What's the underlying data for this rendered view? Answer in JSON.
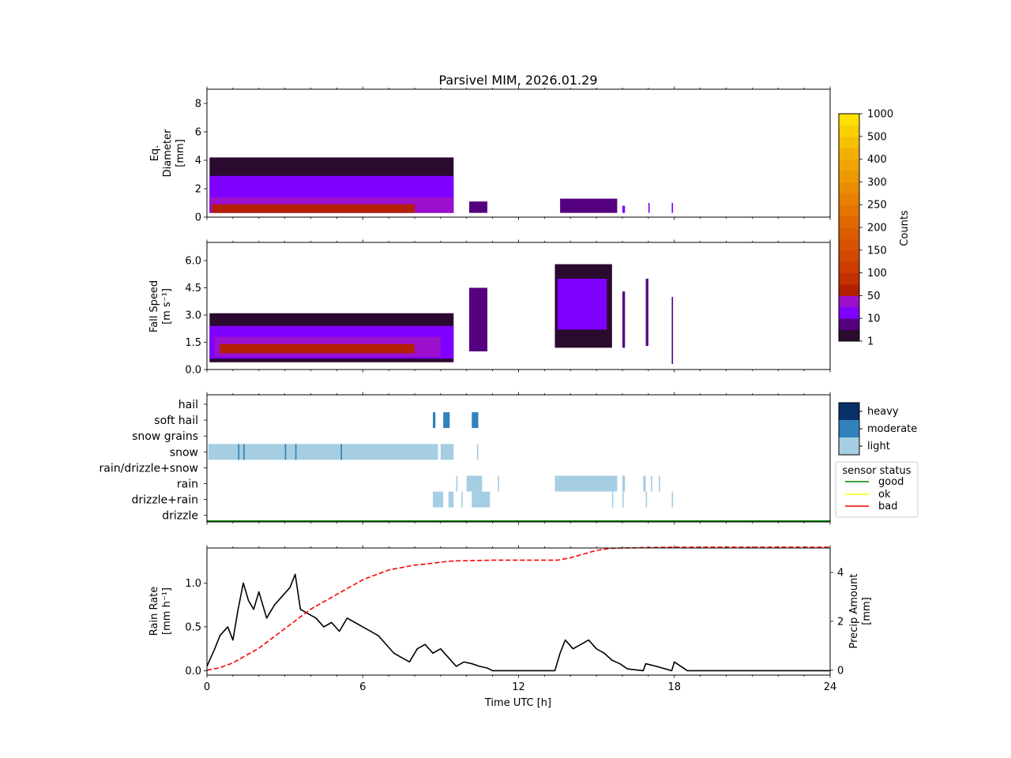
{
  "chart_data": [
    {
      "type": "heatmap",
      "title": "Parsivel MIM, 2026.01.29",
      "ylabel_lines": [
        "Eq.",
        "Diameter",
        "[mm]"
      ],
      "xlim": [
        0,
        24
      ],
      "ylim": [
        0,
        9
      ],
      "yticks": [
        "0",
        "2",
        "4",
        "6",
        "8"
      ],
      "ytick_values": [
        0,
        2,
        4,
        6,
        8
      ],
      "xtick_values": [
        0,
        6,
        12,
        18,
        24
      ],
      "blocks": [
        {
          "t0": 0.1,
          "t1": 9.5,
          "top": 4.2,
          "level": 0
        },
        {
          "t0": 0.1,
          "t1": 9.5,
          "top": 2.9,
          "level": 2
        },
        {
          "t0": 0.1,
          "t1": 9.5,
          "top": 1.4,
          "level": 3
        },
        {
          "t0": 0.2,
          "t1": 8.0,
          "top": 0.9,
          "level": 4
        },
        {
          "t0": 10.1,
          "t1": 10.8,
          "top": 1.1,
          "level": 1
        },
        {
          "t0": 13.6,
          "t1": 15.8,
          "top": 1.3,
          "level": 1
        },
        {
          "t0": 16.0,
          "t1": 16.1,
          "top": 0.8,
          "level": 2
        },
        {
          "t0": 17.0,
          "t1": 17.05,
          "top": 1.0,
          "level": 2
        },
        {
          "t0": 17.9,
          "t1": 17.95,
          "top": 1.0,
          "level": 2
        }
      ]
    },
    {
      "type": "heatmap",
      "ylabel_lines": [
        "Fall Speed",
        "[m s⁻¹]"
      ],
      "xlim": [
        0,
        24
      ],
      "ylim": [
        0,
        7
      ],
      "yticks": [
        "0.0",
        "1.5",
        "3.0",
        "4.5",
        "6.0"
      ],
      "ytick_values": [
        0,
        1.5,
        3.0,
        4.5,
        6.0
      ],
      "xtick_values": [
        0,
        6,
        12,
        18,
        24
      ],
      "blocks": [
        {
          "t0": 0.1,
          "t1": 9.5,
          "bottom": 0.4,
          "top": 3.1,
          "level": 0
        },
        {
          "t0": 0.1,
          "t1": 9.5,
          "bottom": 0.6,
          "top": 2.4,
          "level": 2
        },
        {
          "t0": 0.3,
          "t1": 9.0,
          "bottom": 0.7,
          "top": 1.8,
          "level": 3
        },
        {
          "t0": 0.5,
          "t1": 8.0,
          "bottom": 0.9,
          "top": 1.4,
          "level": 4
        },
        {
          "t0": 10.1,
          "t1": 10.8,
          "bottom": 1.0,
          "top": 4.5,
          "level": 1
        },
        {
          "t0": 13.4,
          "t1": 15.6,
          "bottom": 1.2,
          "top": 5.8,
          "level": 0
        },
        {
          "t0": 13.5,
          "t1": 15.4,
          "bottom": 2.2,
          "top": 5.0,
          "level": 2
        },
        {
          "t0": 16.0,
          "t1": 16.1,
          "bottom": 1.2,
          "top": 4.3,
          "level": 1
        },
        {
          "t0": 16.9,
          "t1": 17.0,
          "bottom": 1.3,
          "top": 5.0,
          "level": 1
        },
        {
          "t0": 17.9,
          "t1": 17.95,
          "bottom": 0.3,
          "top": 4.0,
          "level": 1
        }
      ]
    },
    {
      "type": "categorical_timeline",
      "categories": [
        "hail",
        "soft hail",
        "snow grains",
        "snow",
        "rain/drizzle+snow",
        "rain",
        "drizzle+rain",
        "drizzle"
      ],
      "xlim": [
        0,
        24
      ],
      "xtick_values": [
        0,
        6,
        12,
        18,
        24
      ],
      "segments": [
        {
          "category": "snow",
          "t0": 0.05,
          "t1": 8.9,
          "intensity": "light"
        },
        {
          "category": "snow",
          "t0": 9.0,
          "t1": 9.5,
          "intensity": "light"
        },
        {
          "category": "snow",
          "t0": 10.4,
          "t1": 10.45,
          "intensity": "light"
        },
        {
          "category": "snow",
          "t0": 1.2,
          "t1": 1.25,
          "intensity": "moderate"
        },
        {
          "category": "snow",
          "t0": 1.4,
          "t1": 1.45,
          "intensity": "moderate"
        },
        {
          "category": "snow",
          "t0": 3.0,
          "t1": 3.05,
          "intensity": "moderate"
        },
        {
          "category": "snow",
          "t0": 3.4,
          "t1": 3.45,
          "intensity": "moderate"
        },
        {
          "category": "snow",
          "t0": 5.15,
          "t1": 5.2,
          "intensity": "moderate"
        },
        {
          "category": "soft hail",
          "t0": 8.7,
          "t1": 8.8,
          "intensity": "moderate"
        },
        {
          "category": "soft hail",
          "t0": 9.1,
          "t1": 9.35,
          "intensity": "moderate"
        },
        {
          "category": "soft hail",
          "t0": 10.2,
          "t1": 10.45,
          "intensity": "moderate"
        },
        {
          "category": "rain",
          "t0": 9.6,
          "t1": 9.65,
          "intensity": "light"
        },
        {
          "category": "rain",
          "t0": 10.0,
          "t1": 10.6,
          "intensity": "light"
        },
        {
          "category": "rain",
          "t0": 11.2,
          "t1": 11.25,
          "intensity": "light"
        },
        {
          "category": "rain",
          "t0": 13.4,
          "t1": 15.8,
          "intensity": "light"
        },
        {
          "category": "rain",
          "t0": 16.0,
          "t1": 16.1,
          "intensity": "light"
        },
        {
          "category": "rain",
          "t0": 16.8,
          "t1": 16.9,
          "intensity": "light"
        },
        {
          "category": "rain",
          "t0": 17.1,
          "t1": 17.15,
          "intensity": "light"
        },
        {
          "category": "rain",
          "t0": 17.4,
          "t1": 17.45,
          "intensity": "light"
        },
        {
          "category": "drizzle+rain",
          "t0": 8.7,
          "t1": 9.1,
          "intensity": "light"
        },
        {
          "category": "drizzle+rain",
          "t0": 9.3,
          "t1": 9.5,
          "intensity": "light"
        },
        {
          "category": "drizzle+rain",
          "t0": 9.8,
          "t1": 9.85,
          "intensity": "light"
        },
        {
          "category": "drizzle+rain",
          "t0": 10.2,
          "t1": 10.9,
          "intensity": "light"
        },
        {
          "category": "drizzle+rain",
          "t0": 15.6,
          "t1": 15.65,
          "intensity": "light"
        },
        {
          "category": "drizzle+rain",
          "t0": 16.0,
          "t1": 16.05,
          "intensity": "light"
        },
        {
          "category": "drizzle+rain",
          "t0": 16.9,
          "t1": 16.95,
          "intensity": "light"
        },
        {
          "category": "drizzle+rain",
          "t0": 17.9,
          "t1": 17.95,
          "intensity": "light"
        }
      ],
      "sensor_status": {
        "value": "good",
        "t0": 0,
        "t1": 24
      }
    },
    {
      "type": "line",
      "xlabel": "Time UTC [h]",
      "ylabel_lines": [
        "Rain Rate",
        "[mm h⁻¹]"
      ],
      "y2label_lines": [
        "Precip Amount",
        "[mm]"
      ],
      "xlim": [
        0,
        24
      ],
      "ylim": [
        -0.05,
        1.4
      ],
      "y2lim": [
        -0.2,
        5.0
      ],
      "xticks": [
        "0",
        "6",
        "12",
        "18",
        "24"
      ],
      "xtick_values": [
        0,
        6,
        12,
        18,
        24
      ],
      "yticks": [
        "0.0",
        "0.5",
        "1.0"
      ],
      "ytick_values": [
        0,
        0.5,
        1.0
      ],
      "y2ticks": [
        "0",
        "2",
        "4"
      ],
      "y2tick_values": [
        0,
        2,
        4
      ],
      "series": [
        {
          "name": "rain rate",
          "axis": "left",
          "style": "solid black",
          "x": [
            0,
            0.3,
            0.5,
            0.8,
            1.0,
            1.2,
            1.4,
            1.6,
            1.8,
            2.0,
            2.3,
            2.6,
            2.9,
            3.2,
            3.4,
            3.6,
            3.9,
            4.2,
            4.5,
            4.8,
            5.1,
            5.4,
            5.7,
            6.0,
            6.3,
            6.6,
            6.9,
            7.2,
            7.5,
            7.8,
            8.1,
            8.4,
            8.7,
            9.0,
            9.3,
            9.6,
            9.9,
            10.2,
            10.5,
            10.8,
            11.0,
            11.5,
            12.0,
            13.0,
            13.4,
            13.6,
            13.8,
            14.1,
            14.4,
            14.7,
            15.0,
            15.3,
            15.6,
            15.9,
            16.2,
            16.8,
            16.9,
            17.3,
            17.9,
            18.0,
            18.5,
            24.0
          ],
          "y": [
            0.05,
            0.25,
            0.4,
            0.5,
            0.35,
            0.7,
            1.0,
            0.8,
            0.7,
            0.9,
            0.6,
            0.75,
            0.85,
            0.95,
            1.1,
            0.7,
            0.65,
            0.6,
            0.5,
            0.55,
            0.45,
            0.6,
            0.55,
            0.5,
            0.45,
            0.4,
            0.3,
            0.2,
            0.15,
            0.1,
            0.25,
            0.3,
            0.2,
            0.25,
            0.15,
            0.05,
            0.1,
            0.08,
            0.05,
            0.03,
            0.0,
            0.0,
            0.0,
            0.0,
            0.0,
            0.2,
            0.35,
            0.25,
            0.3,
            0.35,
            0.25,
            0.2,
            0.12,
            0.08,
            0.02,
            0.0,
            0.08,
            0.05,
            0.0,
            0.1,
            0.0,
            0.0
          ]
        },
        {
          "name": "precip amount",
          "axis": "right",
          "style": "dashed red",
          "x": [
            0,
            0.5,
            1.0,
            1.5,
            2.0,
            2.5,
            3.0,
            3.5,
            4.0,
            4.5,
            5.0,
            5.5,
            6.0,
            6.5,
            7.0,
            7.5,
            8.0,
            8.5,
            9.0,
            9.5,
            10.0,
            10.5,
            11.0,
            12.0,
            13.0,
            13.5,
            14.0,
            14.5,
            15.0,
            15.5,
            16.0,
            17.0,
            18.0,
            20.0,
            24.0
          ],
          "y": [
            0.0,
            0.1,
            0.3,
            0.6,
            0.9,
            1.3,
            1.7,
            2.1,
            2.5,
            2.8,
            3.1,
            3.4,
            3.7,
            3.9,
            4.1,
            4.2,
            4.3,
            4.35,
            4.42,
            4.47,
            4.48,
            4.49,
            4.5,
            4.5,
            4.5,
            4.5,
            4.6,
            4.75,
            4.9,
            4.98,
            5.0,
            5.02,
            5.03,
            5.03,
            5.03
          ]
        }
      ]
    }
  ],
  "colorbar": {
    "label": "Counts",
    "tick_labels": [
      "1",
      "10",
      "50",
      "100",
      "150",
      "200",
      "250",
      "300",
      "400",
      "500",
      "1000"
    ],
    "colors": [
      "#2a0a2e",
      "#55007f",
      "#7f00ff",
      "#9b10cc",
      "#b22000",
      "#c23000",
      "#cc3c00",
      "#d24800",
      "#d85200",
      "#dc5c00",
      "#e06800",
      "#e57400",
      "#e88000",
      "#ea8c00",
      "#ee9800",
      "#f0a400",
      "#f2b000",
      "#f5c000",
      "#f8d000",
      "#ffe000"
    ]
  },
  "type_legend": {
    "items": [
      "heavy",
      "moderate",
      "light"
    ],
    "colors": {
      "heavy": "#08306b",
      "moderate": "#3182bd",
      "light": "#a6cee3"
    }
  },
  "status_legend": {
    "title": "sensor status",
    "items": [
      {
        "label": "good",
        "color": "#008000"
      },
      {
        "label": "ok",
        "color": "#ffff00"
      },
      {
        "label": "bad",
        "color": "#ff0000"
      }
    ]
  },
  "level_colors": [
    "#2a0a2e",
    "#55007f",
    "#7f00ff",
    "#9b10cc",
    "#b22000"
  ]
}
